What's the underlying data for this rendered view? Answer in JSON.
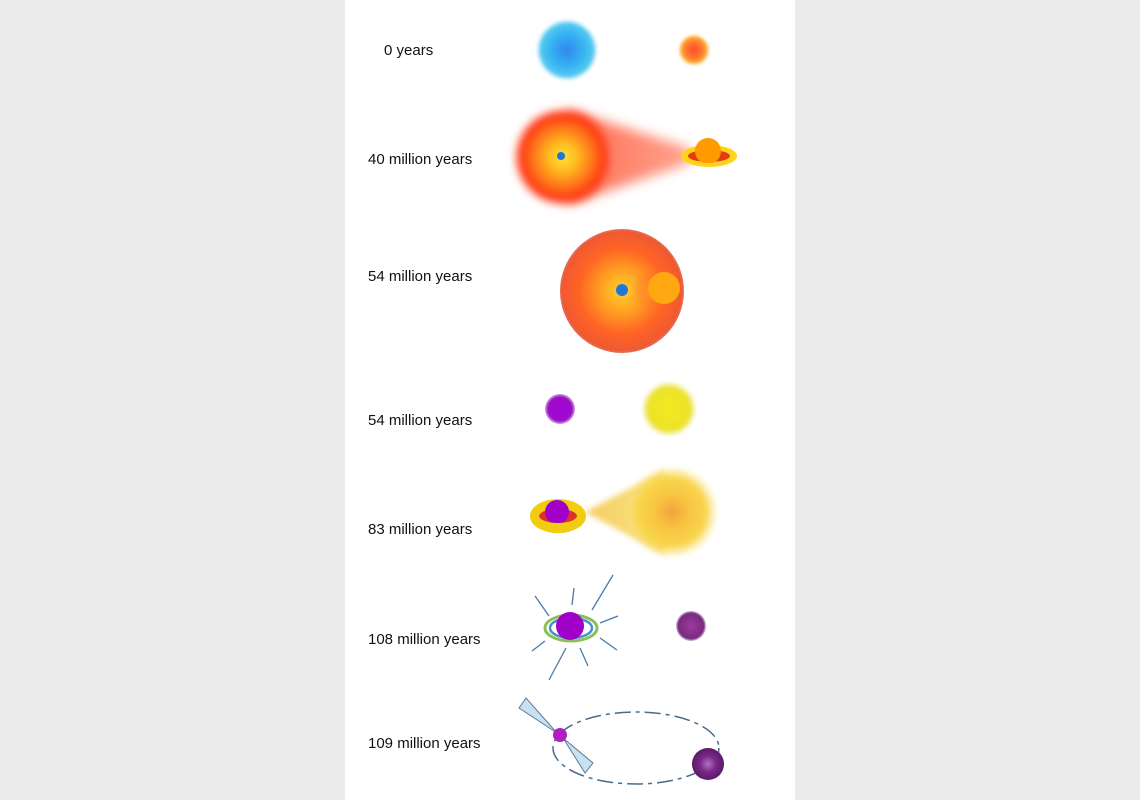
{
  "stages": [
    {
      "label": "0 years"
    },
    {
      "label": "40 million years"
    },
    {
      "label": "54 million years"
    },
    {
      "label": "54 million years"
    },
    {
      "label": "83 million years"
    },
    {
      "label": "108 million years"
    },
    {
      "label": "109 million years"
    }
  ],
  "colors": {
    "page_background": "#ebebeb",
    "panel_background": "#ffffff",
    "blue_star": "#29a8ec",
    "orange_star": "#ff6a2a",
    "yellow_star": "#ffd21e",
    "giant_envelope": "#ff4e1c",
    "core_blue": "#1f78d8",
    "white_dwarf": "#a000c8",
    "neutron_star": "#b020c0",
    "companion_dim": "#7a2a8a",
    "jet_lines": "#4a7aa8"
  }
}
